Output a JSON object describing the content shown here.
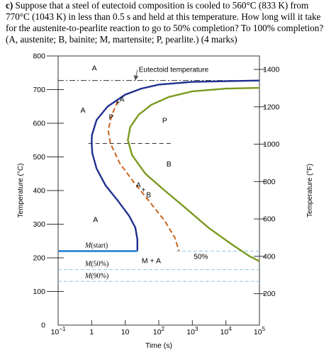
{
  "question": {
    "label": "c)",
    "text": "Suppose that a steel of eutectoid composition is cooled to 560°C (833 K) from 770°C (1043 K) in less than 0.5 s and held at this temperature. How long will it take for the austenite-to-pearlite reaction to go to 50% completion? To 100% completion?  (A, austenite; B, bainite; M, martensite; P, pearlite.) (4 marks)"
  },
  "chart_data": {
    "type": "line",
    "title": "",
    "xlabel": "Time (s)",
    "ylabel": "Temperature (°C)",
    "y2label": "Temperature (°F)",
    "xscale": "log",
    "xlim": [
      0.1,
      100000
    ],
    "ylim": [
      0,
      800
    ],
    "x_ticks": [
      {
        "value": 0.1,
        "base": "10",
        "exp": "−1"
      },
      {
        "value": 1,
        "base": "1",
        "exp": ""
      },
      {
        "value": 10,
        "base": "10",
        "exp": ""
      },
      {
        "value": 100,
        "base": "10",
        "exp": "2"
      },
      {
        "value": 1000,
        "base": "10",
        "exp": "3"
      },
      {
        "value": 10000,
        "base": "10",
        "exp": "4"
      },
      {
        "value": 100000,
        "base": "10",
        "exp": "5"
      }
    ],
    "y_ticks": [
      0,
      100,
      200,
      300,
      400,
      500,
      600,
      700,
      800
    ],
    "y2_ticks": [
      200,
      400,
      600,
      800,
      1000,
      1200,
      1400
    ],
    "eutectoid": {
      "label": "Eutectoid temperature",
      "temp": 727
    },
    "region_labels": [
      {
        "text": "A",
        "x": 1.2,
        "y": 765
      },
      {
        "text": "A",
        "x": 0.55,
        "y": 640
      },
      {
        "text": "P",
        "x": 150,
        "y": 610
      },
      {
        "text": "B",
        "x": 200,
        "y": 480
      },
      {
        "text": "A",
        "x": 1.3,
        "y": 315
      },
      {
        "text": "M + A",
        "x": 60,
        "y": 193
      }
    ],
    "transition_labels": [
      {
        "text": "+",
        "x": 6,
        "y": 662
      },
      {
        "text": "A",
        "x": 8,
        "y": 673
      },
      {
        "text": "P",
        "x": 3.8,
        "y": 620
      },
      {
        "text": "A",
        "x": 25,
        "y": 418
      },
      {
        "text": "+",
        "x": 35,
        "y": 403
      },
      {
        "text": "B",
        "x": 50,
        "y": 388
      }
    ],
    "series": [
      {
        "name": "",
        "color": "#1f2f8f",
        "points": [
          [
            100000,
            727
          ],
          [
            1000,
            723
          ],
          [
            100,
            715
          ],
          [
            30,
            703
          ],
          [
            10,
            685
          ],
          [
            3,
            650
          ],
          [
            1.4,
            610
          ],
          [
            1.02,
            565
          ],
          [
            1.0,
            540
          ],
          [
            1.05,
            510
          ],
          [
            1.4,
            465
          ],
          [
            2.6,
            415
          ],
          [
            6,
            370
          ],
          [
            13,
            325
          ],
          [
            20,
            290
          ],
          [
            23,
            255
          ],
          [
            23,
            220
          ]
        ]
      },
      {
        "name": "",
        "color": "#7a9a1e",
        "points": [
          [
            100000,
            705
          ],
          [
            10000,
            703
          ],
          [
            1000,
            695
          ],
          [
            200,
            678
          ],
          [
            60,
            655
          ],
          [
            25,
            625
          ],
          [
            14,
            588
          ],
          [
            12,
            550
          ],
          [
            16,
            505
          ],
          [
            40,
            450
          ],
          [
            150,
            400
          ],
          [
            600,
            350
          ],
          [
            3000,
            290
          ],
          [
            15000,
            240
          ],
          [
            50000,
            205
          ],
          [
            100000,
            190
          ]
        ]
      },
      {
        "name": "50%",
        "color": "#c8641e",
        "points": [
          [
            6,
            666
          ],
          [
            4,
            625
          ],
          [
            3.1,
            580
          ],
          [
            3.6,
            540
          ],
          [
            7,
            480
          ],
          [
            18,
            425
          ],
          [
            50,
            370
          ],
          [
            150,
            310
          ],
          [
            300,
            260
          ],
          [
            400,
            220
          ]
        ]
      }
    ],
    "martensite": [
      {
        "label": "M(start)",
        "temp": 220
      },
      {
        "label": "M(50%)",
        "temp": 165
      },
      {
        "label": "M(90%)",
        "temp": 130
      }
    ],
    "hold_temp": 540,
    "pct_label": "50%"
  }
}
